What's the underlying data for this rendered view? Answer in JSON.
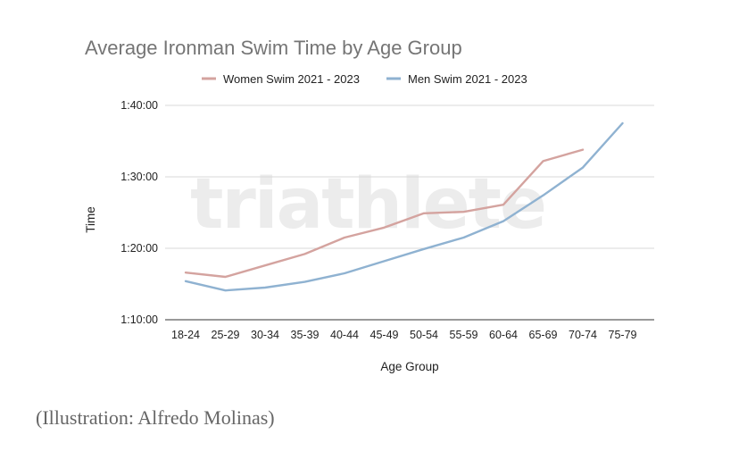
{
  "chart_data": {
    "type": "line",
    "title": "Average Ironman Swim Time by Age Group",
    "xlabel": "Age Group",
    "ylabel": "Time",
    "categories": [
      "18-24",
      "25-29",
      "30-34",
      "35-39",
      "40-44",
      "45-49",
      "50-54",
      "55-59",
      "60-64",
      "65-69",
      "70-74",
      "75-79"
    ],
    "series": [
      {
        "name": "Women Swim 2021 - 2023",
        "color": "#d4a39f",
        "values": [
          76.6,
          76.0,
          77.6,
          79.2,
          81.5,
          82.9,
          84.9,
          85.1,
          86.1,
          92.2,
          93.8,
          null
        ]
      },
      {
        "name": "Men Swim 2021 - 2023",
        "color": "#8fb2d1",
        "values": [
          75.4,
          74.1,
          74.5,
          75.3,
          76.5,
          78.2,
          79.9,
          81.5,
          83.8,
          87.4,
          91.3,
          97.5
        ]
      }
    ],
    "ylim": [
      70,
      100
    ],
    "yticks": [
      {
        "value": 70,
        "label": "1:10:00"
      },
      {
        "value": 80,
        "label": "1:20:00"
      },
      {
        "value": 90,
        "label": "1:30:00"
      },
      {
        "value": 100,
        "label": "1:40:00"
      }
    ],
    "grid": true,
    "legend_position": "top",
    "watermark": "triathlete"
  },
  "caption": "(Illustration: Alfredo Molinas)"
}
